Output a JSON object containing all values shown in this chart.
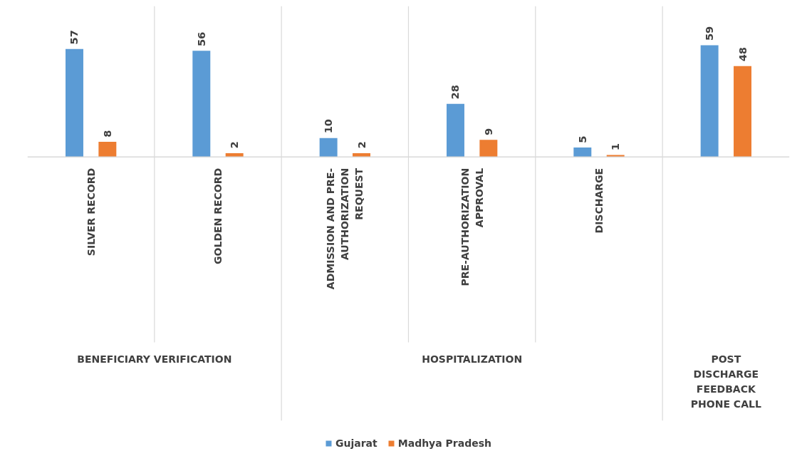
{
  "chart_data": {
    "type": "bar",
    "categories": [
      "SILVER RECORD",
      "GOLDEN RECORD",
      "ADMISSION AND PRE-AUTHORIZATION REQUEST",
      "PRE-AUTHORIZATION APPROVAL",
      "DISCHARGE",
      null
    ],
    "series": [
      {
        "name": "Gujarat",
        "color": "#5b9bd5",
        "values": [
          57,
          56,
          10,
          28,
          5,
          59
        ]
      },
      {
        "name": "Madhya Pradesh",
        "color": "#ed7d31",
        "values": [
          8,
          2,
          2,
          9,
          1,
          48
        ]
      }
    ],
    "data_labels": true,
    "legend": "bottom",
    "annotations": [
      "BENEFICIARY VERIFICATION",
      "HOSPITALIZATION",
      "POST DISCHARGE FEEDBACK PHONE CALL"
    ]
  }
}
